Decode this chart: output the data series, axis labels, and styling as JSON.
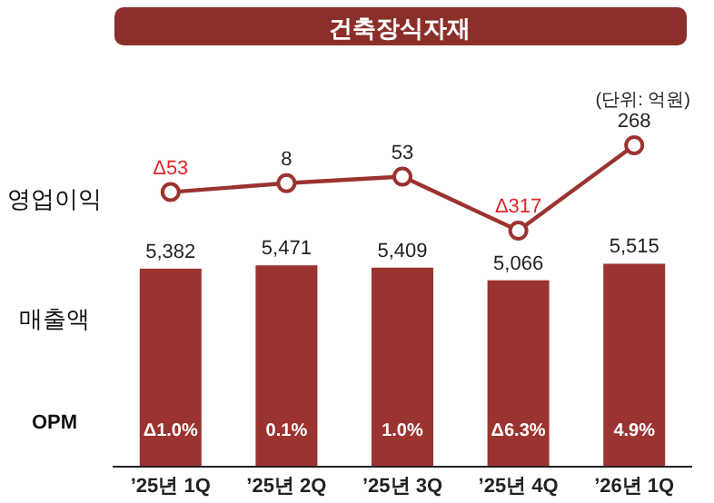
{
  "chart_data": [
    {
      "type": "line",
      "title": "건축장식자재",
      "annotations": [
        "(단위: 억원)"
      ],
      "ylabel": "영업이익",
      "marker": "circle",
      "categories": [
        null,
        null,
        null,
        null,
        null
      ],
      "series": [
        {
          "color": "#9b3330",
          "values": [
            -53,
            8,
            53,
            -317,
            268
          ],
          "value_labels": [
            "Δ53",
            "8",
            "53",
            "Δ317",
            "268"
          ]
        }
      ]
    },
    {
      "type": "bar",
      "ylabel": "매출액",
      "tick_labels": "x",
      "categories": [
        "’25년 1Q",
        "’25년 2Q",
        "’25년 3Q",
        "’25년 4Q",
        "’26년 1Q"
      ],
      "series": [
        {
          "color": "#9b3330",
          "values": [
            5382,
            5471,
            5409,
            5066,
            5515
          ],
          "value_labels": [
            "5,382",
            "5,471",
            "5,409",
            "5,066",
            "5,515"
          ]
        }
      ]
    },
    {
      "type": "other",
      "ylabel": "OPM",
      "annotations": [
        "Δ1.0%",
        "0.1%",
        "1.0%",
        "Δ6.3%",
        "4.9%"
      ]
    }
  ]
}
